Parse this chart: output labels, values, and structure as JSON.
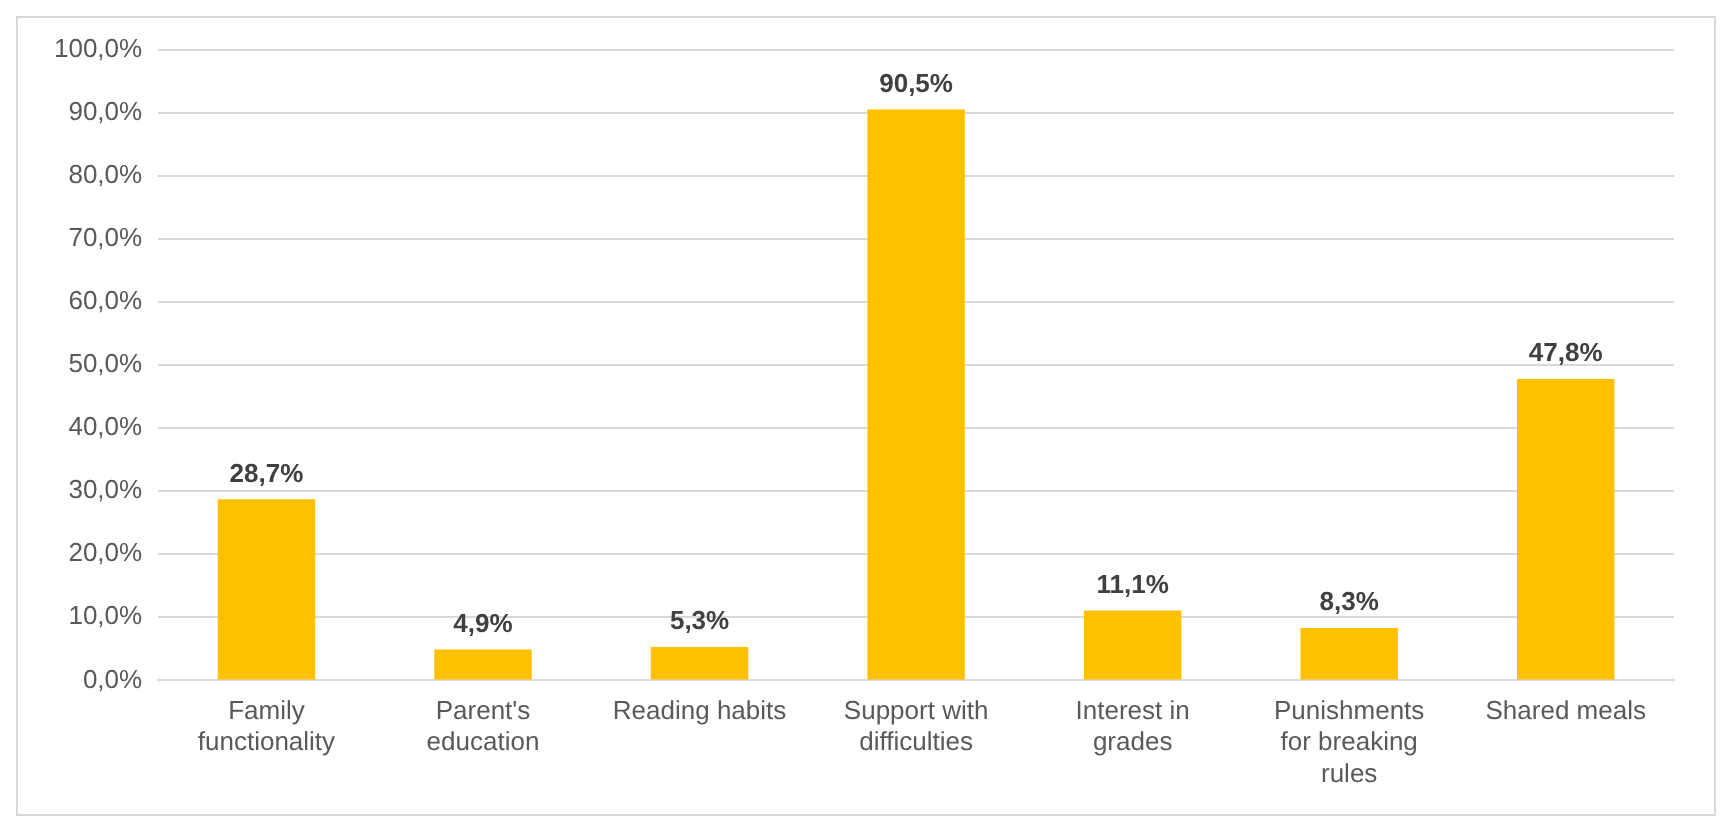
{
  "chart_data": {
    "type": "bar",
    "categories": [
      "Family functionality",
      "Parent's education",
      "Reading habits",
      "Support with difficulties",
      "Interest in grades",
      "Punishments for breaking rules",
      "Shared meals"
    ],
    "values": [
      28.7,
      4.9,
      5.3,
      90.5,
      11.1,
      8.3,
      47.8
    ],
    "value_labels": [
      "28,7%",
      "4,9%",
      "5,3%",
      "90,5%",
      "11,1%",
      "8,3%",
      "47,8%"
    ],
    "color": "#ffc000",
    "ylim": [
      0,
      100
    ],
    "yticks": [
      {
        "value": 0,
        "label": "0,0%"
      },
      {
        "value": 10,
        "label": "10,0%"
      },
      {
        "value": 20,
        "label": "20,0%"
      },
      {
        "value": 30,
        "label": "30,0%"
      },
      {
        "value": 40,
        "label": "40,0%"
      },
      {
        "value": 50,
        "label": "50,0%"
      },
      {
        "value": 60,
        "label": "60,0%"
      },
      {
        "value": 70,
        "label": "70,0%"
      },
      {
        "value": 80,
        "label": "80,0%"
      },
      {
        "value": 90,
        "label": "90,0%"
      },
      {
        "value": 100,
        "label": "100,0%"
      }
    ],
    "grid": "y",
    "legend": false
  }
}
